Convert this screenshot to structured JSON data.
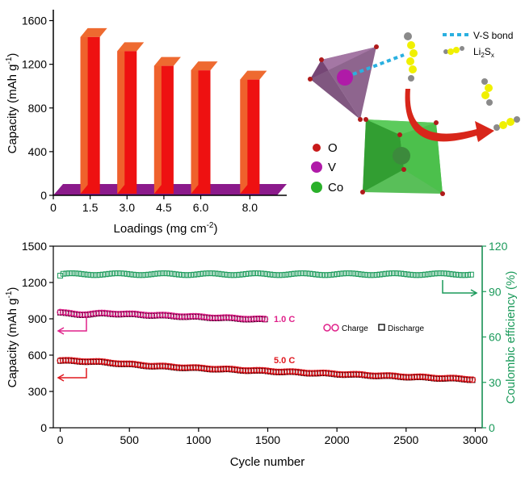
{
  "chart_data": [
    {
      "type": "bar",
      "panel": "top-left",
      "categories": [
        "1.5",
        "3.0",
        "4.5",
        "6.0",
        "8.0"
      ],
      "values": [
        1450,
        1320,
        1185,
        1145,
        1060
      ],
      "xlabel_main": "Loadings (mg cm",
      "xlabel_sup": "-2",
      "xlabel_end": ")",
      "ylabel_main": "Capacity (mAh g",
      "ylabel_sup": "-1",
      "ylabel_end": ")",
      "xlim": [
        0,
        9.5
      ],
      "ylim": [
        0,
        1700
      ],
      "yticks": [
        0,
        400,
        800,
        1200,
        1600
      ],
      "xticks": [
        0,
        1.5,
        3.0,
        4.5,
        6.0,
        8.0
      ],
      "bar_front_color": "#ee1111",
      "bar_top_color": "#ee6a30",
      "floor_color": "#8b1a8b",
      "style": "3d"
    },
    {
      "type": "scatter",
      "panel": "bottom",
      "xlabel": "Cycle number",
      "ylabel_main": "Capacity (mAh g",
      "ylabel_sup": "-1",
      "ylabel_end": ")",
      "y2label": "Coulombic efficiency (%)",
      "xlim": [
        -50,
        3050
      ],
      "ylim": [
        0,
        1500
      ],
      "y2lim": [
        0,
        120
      ],
      "xticks": [
        0,
        500,
        1000,
        1500,
        2000,
        2500,
        3000
      ],
      "yticks": [
        0,
        300,
        600,
        900,
        1200,
        1500
      ],
      "y2ticks": [
        0,
        30,
        60,
        90,
        120
      ],
      "legend": {
        "charge": "Charge",
        "discharge": "Discharge"
      },
      "rate_labels": [
        "1.0 C",
        "5.0 C"
      ],
      "series": [
        {
          "name": "1.0 C",
          "marker": "circle",
          "color": "#e0218a",
          "x_range": [
            0,
            1480
          ],
          "y_start": 965,
          "y_end": 895,
          "y_peak": 945,
          "axis": "left"
        },
        {
          "name": "5.0 C",
          "marker": "circle",
          "color": "#e0181f",
          "x_range": [
            0,
            2990
          ],
          "y_start": 548,
          "y_end": 400,
          "y_peak": 562,
          "axis": "left"
        },
        {
          "name": "Coulombic efficiency",
          "marker": "square",
          "color": "#1a9a5a",
          "x_range": [
            0,
            2990
          ],
          "y_start": 100.5,
          "y_end": 101,
          "y_mean": 101.5,
          "axis": "right"
        }
      ],
      "colors": {
        "left_axis": "#000000",
        "right_axis": "#1a9a5a",
        "magenta": "#e0218a",
        "red": "#e0181f"
      }
    }
  ],
  "schematic": {
    "legend": [
      {
        "label": "O",
        "color": "#c81a1a"
      },
      {
        "label": "V",
        "color": "#b01aa8"
      },
      {
        "label": "Co",
        "color": "#2ab02a"
      }
    ],
    "bond_label": "V-S bond",
    "polysulfide_label": "Li",
    "polysulfide_sub1": "2",
    "polysulfide_mid": "S",
    "polysulfide_sub2": "x",
    "colors": {
      "tetrahedron": "#8b5a8b",
      "octahedron": "#3cb43c",
      "arrow": "#d8261a",
      "sulfur": "#f0f000",
      "bond": "#2ab0e0"
    }
  }
}
